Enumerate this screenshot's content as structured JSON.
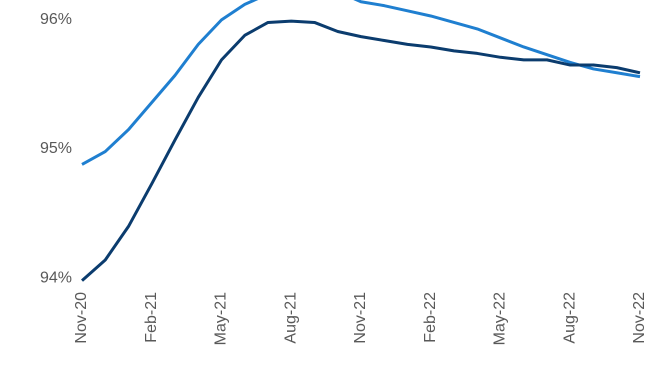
{
  "chart_data": {
    "type": "line",
    "categories": [
      "Nov-20",
      null,
      null,
      "Feb-21",
      null,
      null,
      "May-21",
      null,
      null,
      "Aug-21",
      null,
      null,
      "Nov-21",
      null,
      null,
      "Feb-22",
      null,
      null,
      "May-22",
      null,
      null,
      "Aug-22",
      null,
      null,
      "Nov-22"
    ],
    "series": [
      {
        "color": "#1f7fd0",
        "values": [
          94.88,
          94.98,
          95.15,
          95.36,
          95.57,
          95.81,
          96.0,
          96.12,
          96.2,
          96.26,
          96.27,
          96.22,
          96.14,
          96.11,
          96.07,
          96.03,
          95.98,
          95.93,
          95.86,
          95.79,
          95.73,
          95.67,
          95.62,
          95.59,
          95.56
        ]
      },
      {
        "color": "#0b3c6e",
        "values": [
          93.98,
          94.14,
          94.4,
          94.73,
          95.07,
          95.4,
          95.69,
          95.88,
          95.98,
          95.99,
          95.98,
          95.91,
          95.87,
          95.84,
          95.81,
          95.79,
          95.76,
          95.74,
          95.71,
          95.69,
          95.69,
          95.65,
          95.65,
          95.63,
          95.59
        ]
      }
    ],
    "ylim": [
      93.95,
      96.15
    ],
    "yticks": [
      {
        "value": 94,
        "label": "94%"
      },
      {
        "value": 95,
        "label": "95%"
      },
      {
        "value": 96,
        "label": "96%"
      }
    ]
  }
}
